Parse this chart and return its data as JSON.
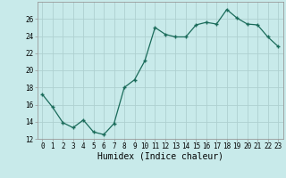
{
  "x": [
    0,
    1,
    2,
    3,
    4,
    5,
    6,
    7,
    8,
    9,
    10,
    11,
    12,
    13,
    14,
    15,
    16,
    17,
    18,
    19,
    20,
    21,
    22,
    23
  ],
  "y": [
    17.2,
    15.7,
    13.9,
    13.3,
    14.2,
    12.8,
    12.5,
    13.8,
    18.0,
    18.9,
    21.1,
    25.0,
    24.2,
    23.9,
    23.9,
    25.3,
    25.6,
    25.4,
    27.1,
    26.1,
    25.4,
    25.3,
    23.9,
    22.8
  ],
  "xlabel": "Humidex (Indice chaleur)",
  "line_color": "#1a6b5a",
  "bg_color": "#c8eaea",
  "grid_color": "#aed0d0",
  "ylim": [
    12,
    28
  ],
  "yticks": [
    12,
    14,
    16,
    18,
    20,
    22,
    24,
    26
  ],
  "xticks": [
    0,
    1,
    2,
    3,
    4,
    5,
    6,
    7,
    8,
    9,
    10,
    11,
    12,
    13,
    14,
    15,
    16,
    17,
    18,
    19,
    20,
    21,
    22,
    23
  ],
  "tick_fontsize": 5.5,
  "xlabel_fontsize": 7.0
}
